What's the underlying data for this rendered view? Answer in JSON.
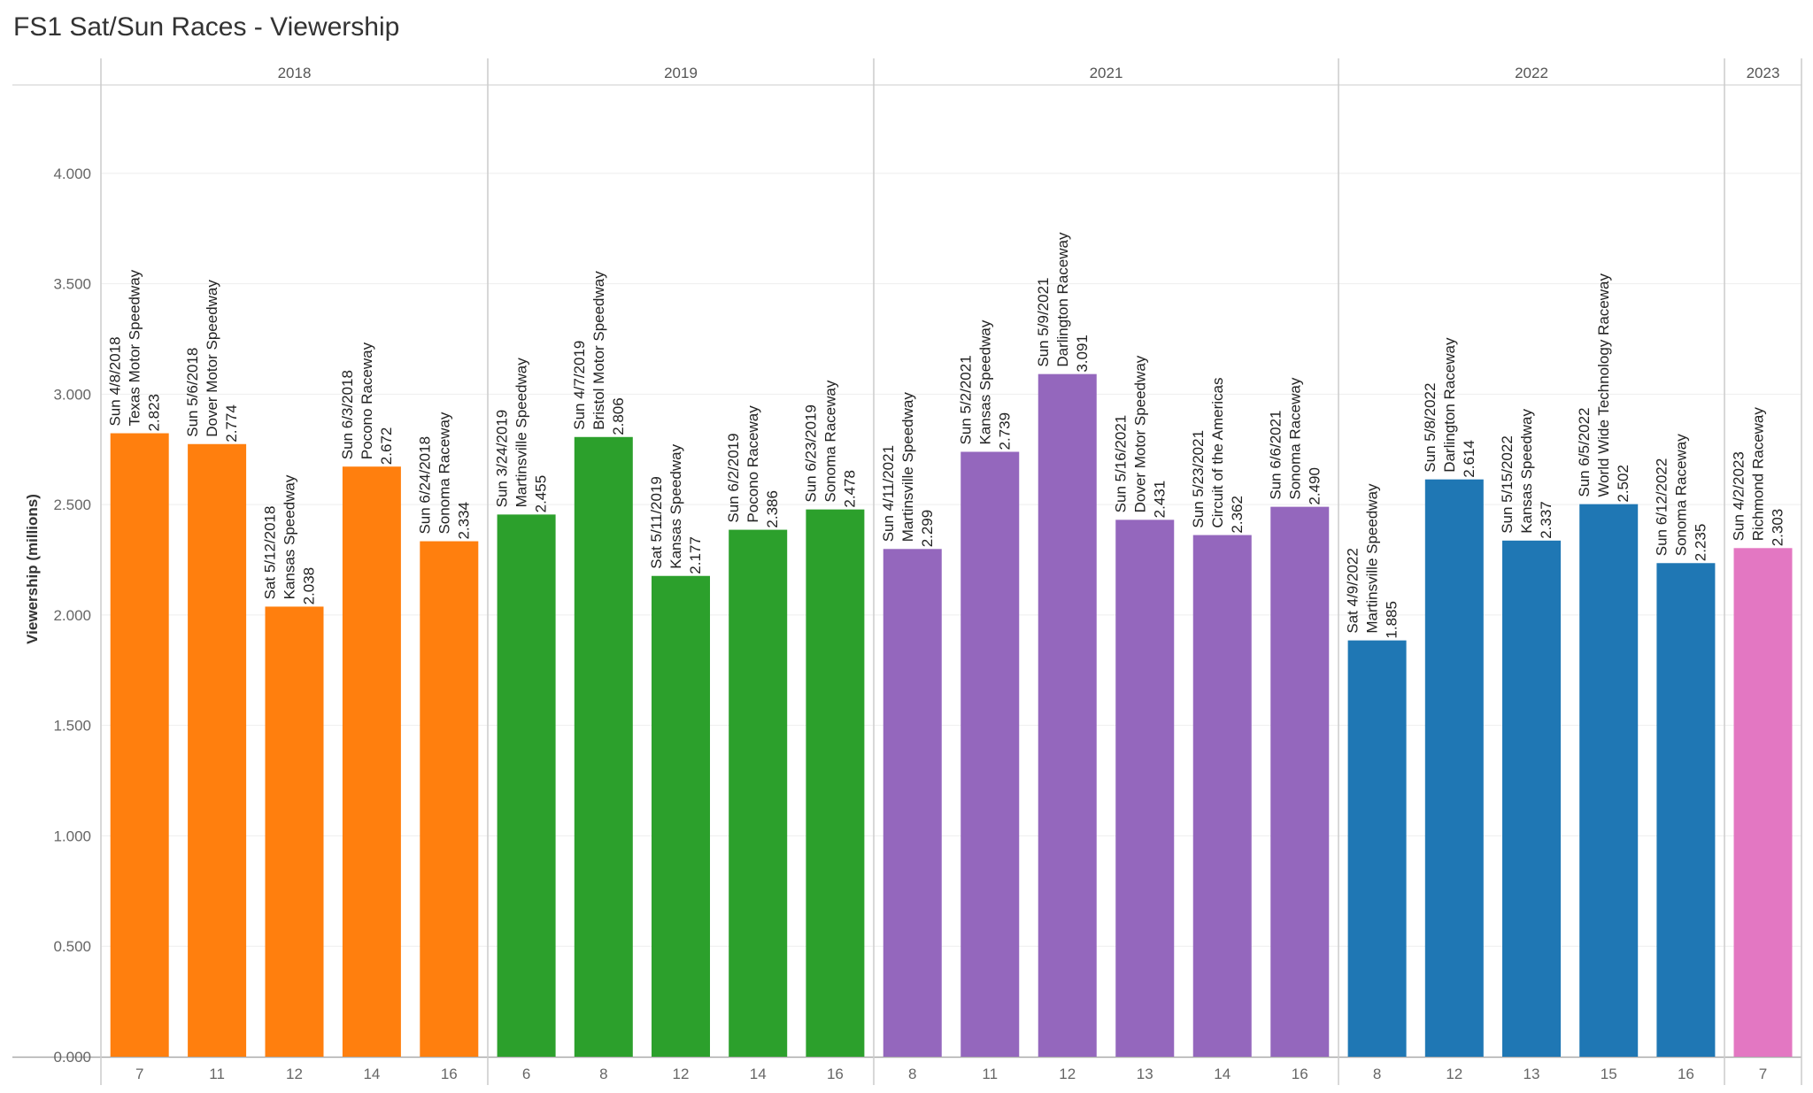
{
  "chart_data": {
    "type": "bar",
    "title": "FS1 Sat/Sun Races - Viewership",
    "ylabel": "Viewership (millions)",
    "xlabel": "",
    "ylim": [
      0,
      4.4
    ],
    "yticks": [
      "0.000",
      "0.500",
      "1.000",
      "1.500",
      "2.000",
      "2.500",
      "3.000",
      "3.500",
      "4.000"
    ],
    "grid": true,
    "groups": [
      {
        "year": "2018",
        "color": "#ff7f0e",
        "bars": [
          {
            "x": "7",
            "date": "Sun 4/8/2018",
            "track": "Texas Motor Speedway",
            "label": "2.823",
            "value": 2.823
          },
          {
            "x": "11",
            "date": "Sun 5/6/2018",
            "track": "Dover Motor Speedway",
            "label": "2.774",
            "value": 2.774
          },
          {
            "x": "12",
            "date": "Sat 5/12/2018",
            "track": "Kansas Speedway",
            "label": "2.038",
            "value": 2.038
          },
          {
            "x": "14",
            "date": "Sun 6/3/2018",
            "track": "Pocono Raceway",
            "label": "2.672",
            "value": 2.672
          },
          {
            "x": "16",
            "date": "Sun 6/24/2018",
            "track": "Sonoma Raceway",
            "label": "2.334",
            "value": 2.334
          }
        ]
      },
      {
        "year": "2019",
        "color": "#2ca02c",
        "bars": [
          {
            "x": "6",
            "date": "Sun 3/24/2019",
            "track": "Martinsville Speedway",
            "label": "2.455",
            "value": 2.455
          },
          {
            "x": "8",
            "date": "Sun 4/7/2019",
            "track": "Bristol Motor Speedway",
            "label": "2.806",
            "value": 2.806
          },
          {
            "x": "12",
            "date": "Sat 5/11/2019",
            "track": "Kansas Speedway",
            "label": "2.177",
            "value": 2.177
          },
          {
            "x": "14",
            "date": "Sun 6/2/2019",
            "track": "Pocono Raceway",
            "label": "2.386",
            "value": 2.386
          },
          {
            "x": "16",
            "date": "Sun 6/23/2019",
            "track": "Sonoma Raceway",
            "label": "2.478",
            "value": 2.478
          }
        ]
      },
      {
        "year": "2021",
        "color": "#9467bd",
        "bars": [
          {
            "x": "8",
            "date": "Sun 4/11/2021",
            "track": "Martinsville Speedway",
            "label": "2.299",
            "value": 2.299
          },
          {
            "x": "11",
            "date": "Sun 5/2/2021",
            "track": "Kansas Speedway",
            "label": "2.739",
            "value": 2.739
          },
          {
            "x": "12",
            "date": "Sun 5/9/2021",
            "track": "Darlington Raceway",
            "label": "3.091",
            "value": 3.091
          },
          {
            "x": "13",
            "date": "Sun 5/16/2021",
            "track": "Dover Motor Speedway",
            "label": "2.431",
            "value": 2.431
          },
          {
            "x": "14",
            "date": "Sun 5/23/2021",
            "track": "Circuit of the Americas",
            "label": "2.362",
            "value": 2.362
          },
          {
            "x": "16",
            "date": "Sun 6/6/2021",
            "track": "Sonoma Raceway",
            "label": "2.490",
            "value": 2.49
          }
        ]
      },
      {
        "year": "2022",
        "color": "#1f77b4",
        "bars": [
          {
            "x": "8",
            "date": "Sat 4/9/2022",
            "track": "Martinsville Speedway",
            "label": "1.885",
            "value": 1.885
          },
          {
            "x": "12",
            "date": "Sun 5/8/2022",
            "track": "Darlington Raceway",
            "label": "2.614",
            "value": 2.614
          },
          {
            "x": "13",
            "date": "Sun 5/15/2022",
            "track": "Kansas Speedway",
            "label": "2.337",
            "value": 2.337
          },
          {
            "x": "15",
            "date": "Sun 6/5/2022",
            "track": "World Wide Technology Raceway",
            "label": "2.502",
            "value": 2.502
          },
          {
            "x": "16",
            "date": "Sun 6/12/2022",
            "track": "Sonoma Raceway",
            "label": "2.235",
            "value": 2.235
          }
        ]
      },
      {
        "year": "2023",
        "color": "#e377c2",
        "bars": [
          {
            "x": "7",
            "date": "Sun 4/2/2023",
            "track": "Richmond Raceway",
            "label": "2.303",
            "value": 2.303
          }
        ]
      }
    ]
  }
}
